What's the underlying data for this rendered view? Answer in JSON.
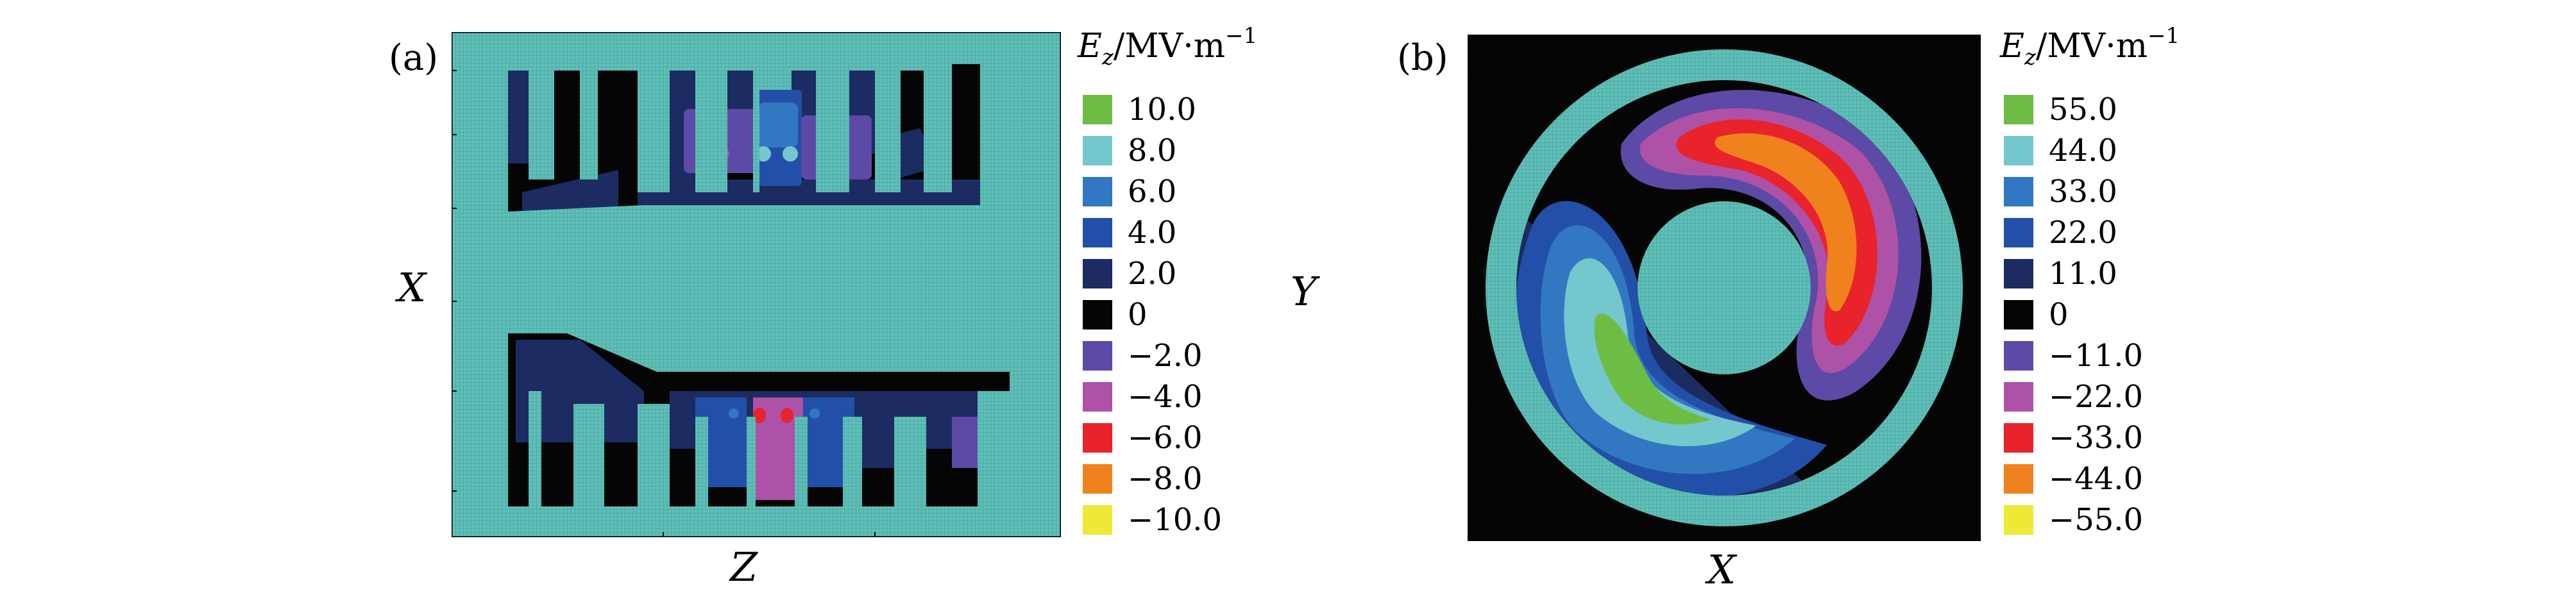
{
  "panel_a": {
    "label": "(a)",
    "xlabel": "Z",
    "ylabel": "X",
    "colorbar": {
      "title_symbol": "E",
      "title_sub": "z",
      "title_units": "/MV·m",
      "title_exp": "−1",
      "entries": [
        {
          "label": "10.0",
          "color": "#6dbd45"
        },
        {
          "label": "8.0",
          "color": "#74c7cc"
        },
        {
          "label": "6.0",
          "color": "#3277c1"
        },
        {
          "label": "4.0",
          "color": "#2250a8"
        },
        {
          "label": "2.0",
          "color": "#1c2b62"
        },
        {
          "label": "0",
          "color": "#050505"
        },
        {
          "label": "−2.0",
          "color": "#5d49a6"
        },
        {
          "label": "−4.0",
          "color": "#ad52a7"
        },
        {
          "label": "−6.0",
          "color": "#e8232b"
        },
        {
          "label": "−8.0",
          "color": "#f0821e"
        },
        {
          "label": "−10.0",
          "color": "#ede936"
        }
      ]
    }
  },
  "panel_b": {
    "label": "(b)",
    "xlabel": "X",
    "ylabel": "Y",
    "colorbar": {
      "title_symbol": "E",
      "title_sub": "z",
      "title_units": "/MV·m",
      "title_exp": "−1",
      "entries": [
        {
          "label": "55.0",
          "color": "#6dbd45"
        },
        {
          "label": "44.0",
          "color": "#74c7cc"
        },
        {
          "label": "33.0",
          "color": "#3277c1"
        },
        {
          "label": "22.0",
          "color": "#2250a8"
        },
        {
          "label": "11.0",
          "color": "#1c2b62"
        },
        {
          "label": "0",
          "color": "#050505"
        },
        {
          "label": "−11.0",
          "color": "#5d49a6"
        },
        {
          "label": "−22.0",
          "color": "#ad52a7"
        },
        {
          "label": "−33.0",
          "color": "#e8232b"
        },
        {
          "label": "−44.0",
          "color": "#f0821e"
        },
        {
          "label": "−55.0",
          "color": "#ede936"
        }
      ]
    }
  },
  "colors": {
    "metal": "#5fbfb8",
    "metal_grid": "#3f9f98",
    "vacuum": "#050505"
  }
}
